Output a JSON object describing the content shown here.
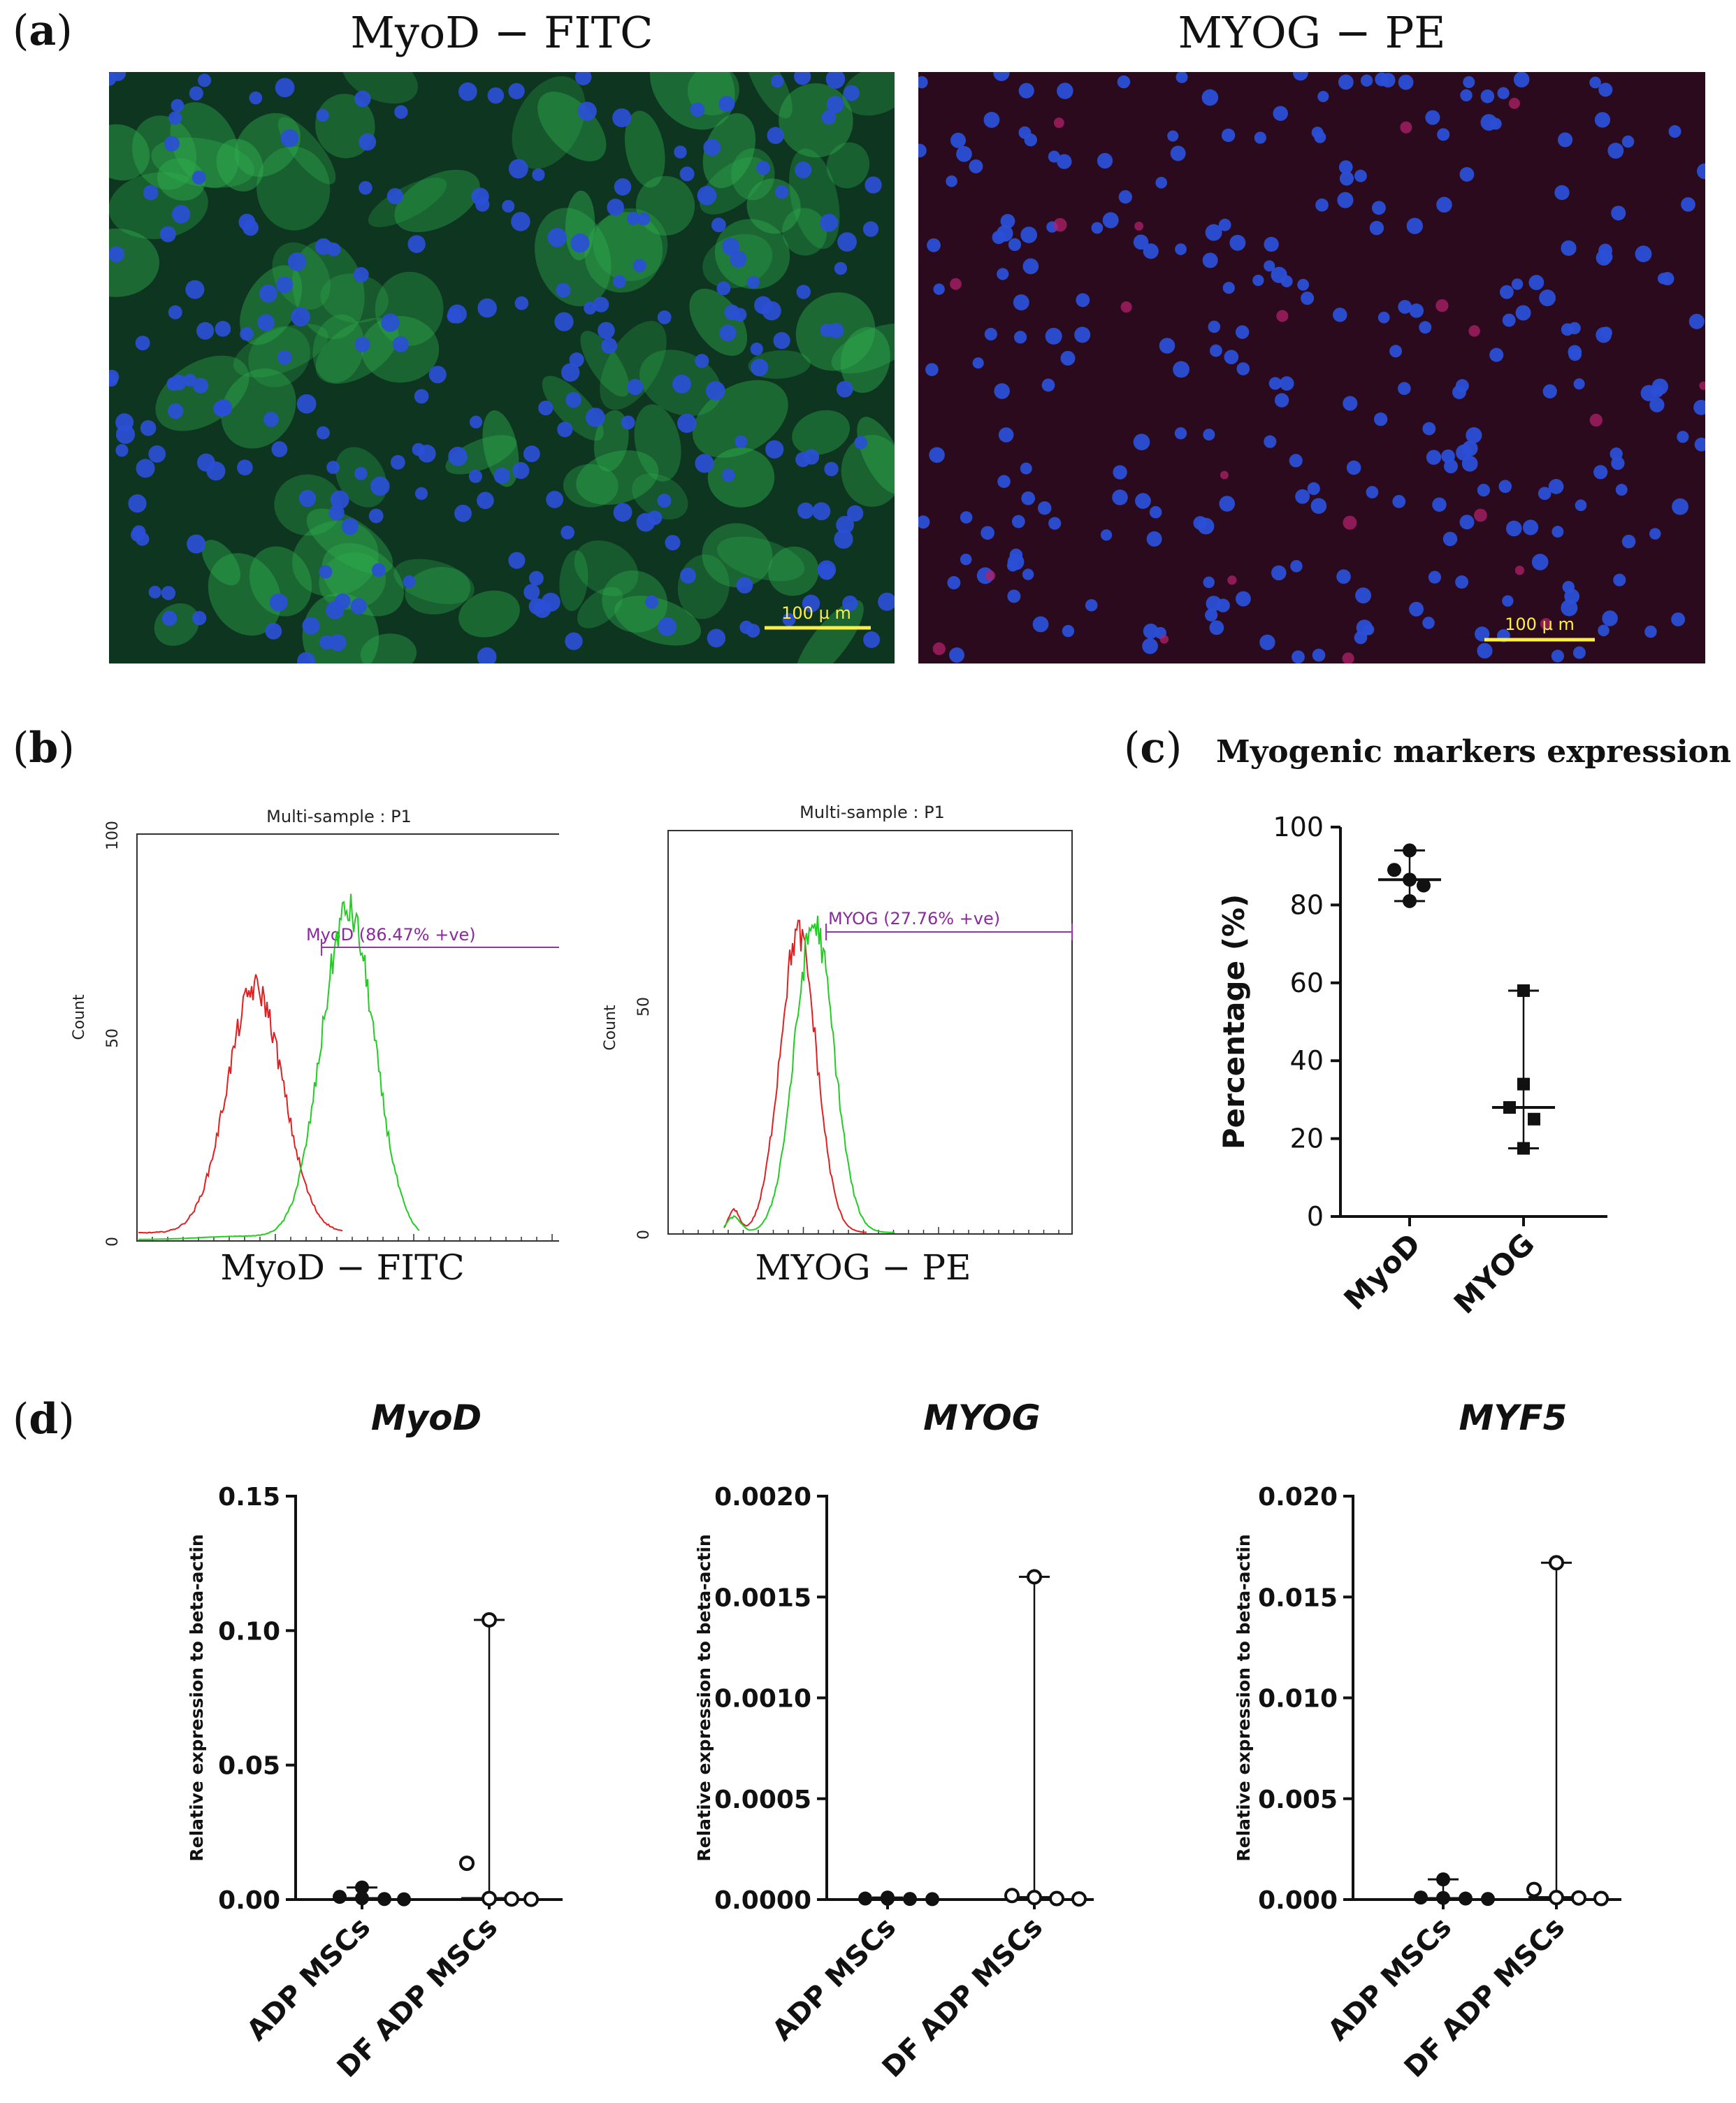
{
  "panel_a": {
    "label_open": "(",
    "label_letter": "a",
    "label_close": ")",
    "left_title": "MyoD − FITC",
    "right_title": "MYOG − PE",
    "left_scale": "100 µ m",
    "right_scale": "100 µ m",
    "colors": {
      "nucleus": "#2a4fd6",
      "fitc": "#2fae4e",
      "pe_bg": "#2a0a1c",
      "scale": "#ffee44"
    }
  },
  "panel_b": {
    "label_open": "(",
    "label_letter": "b",
    "label_close": ")",
    "left": {
      "header": "Multi-sample : P1",
      "ylabel": "Count",
      "xlabel": "MyoD − FITC",
      "gate": "MyoD (86.47% +ve)",
      "yticks": [
        "0",
        "50",
        "100"
      ]
    },
    "right": {
      "header": "Multi-sample : P1",
      "ylabel": "Count",
      "xlabel": "MYOG − PE",
      "gate": "MYOG (27.76% +ve)",
      "yticks": [
        "0",
        "50"
      ]
    },
    "colors": {
      "control": "#e02020",
      "stained": "#22cc22",
      "gate": "#9933aa"
    }
  },
  "panel_c": {
    "label_open": "(",
    "label_letter": "c",
    "label_close": ")",
    "title": "Myogenic markers expression"
  },
  "panel_d": {
    "label_open": "(",
    "label_letter": "d",
    "label_close": ")"
  },
  "chart_data": [
    {
      "type": "scatter",
      "title": "Myogenic markers expression",
      "xlabel": "",
      "ylabel": "Percentage (%)",
      "ylim": [
        0,
        100
      ],
      "yticks": [
        "0",
        "20",
        "40",
        "60",
        "80",
        "100"
      ],
      "categories": [
        "MyoD",
        "MYOG"
      ],
      "series": [
        {
          "name": "MyoD",
          "marker": "circle",
          "values": [
            94,
            89,
            86.5,
            85,
            81
          ],
          "median": 86.5,
          "range": [
            81,
            94
          ]
        },
        {
          "name": "MYOG",
          "marker": "square",
          "values": [
            58,
            34,
            28,
            25,
            17.5
          ],
          "median": 28,
          "range": [
            17.5,
            58
          ]
        }
      ]
    },
    {
      "type": "scatter",
      "title": "MyoD",
      "xlabel": "",
      "ylabel": "Relative expression to beta-actin",
      "ylim": [
        0,
        0.15
      ],
      "yticks": [
        "0.00",
        "0.05",
        "0.10",
        "0.15"
      ],
      "categories": [
        "ADP MSCs",
        "DF ADP MSCs"
      ],
      "series": [
        {
          "name": "ADP MSCs",
          "marker": "filled-circle",
          "values": [
            0.0045,
            0.001,
            0.0005,
            0.0002,
            0.0001
          ],
          "median": 0.0004,
          "range": [
            0,
            0.0045
          ]
        },
        {
          "name": "DF ADP MSCs",
          "marker": "open-circle",
          "values": [
            0.104,
            0.0135,
            0.0004,
            0.0002,
            0.0001
          ],
          "median": 0.0004,
          "range": [
            0,
            0.104
          ]
        }
      ]
    },
    {
      "type": "scatter",
      "title": "MYOG",
      "xlabel": "",
      "ylabel": "Relative expression to beta-actin",
      "ylim": [
        0,
        0.002
      ],
      "yticks": [
        "0.0000",
        "0.0005",
        "0.0010",
        "0.0015",
        "0.0020"
      ],
      "categories": [
        "ADP MSCs",
        "DF ADP MSCs"
      ],
      "series": [
        {
          "name": "ADP MSCs",
          "marker": "filled-circle",
          "values": [
            1e-05,
            5e-06,
            4e-06,
            3e-06,
            2e-06
          ],
          "median": 4e-06,
          "range": [
            0,
            1e-05
          ]
        },
        {
          "name": "DF ADP MSCs",
          "marker": "open-circle",
          "values": [
            0.0016,
            2e-05,
            1e-05,
            5e-06,
            3e-06
          ],
          "median": 1e-05,
          "range": [
            0,
            0.0016
          ]
        }
      ]
    },
    {
      "type": "scatter",
      "title": "MYF5",
      "xlabel": "",
      "ylabel": "Relative expression to beta-actin",
      "ylim": [
        0,
        0.02
      ],
      "yticks": [
        "0.000",
        "0.005",
        "0.010",
        "0.015",
        "0.020"
      ],
      "categories": [
        "ADP MSCs",
        "DF ADP MSCs"
      ],
      "series": [
        {
          "name": "ADP MSCs",
          "marker": "filled-circle",
          "values": [
            0.001,
            0.0001,
            8e-05,
            5e-05,
            3e-05
          ],
          "median": 5e-05,
          "range": [
            0,
            0.001
          ]
        },
        {
          "name": "DF ADP MSCs",
          "marker": "open-circle",
          "values": [
            0.0167,
            0.0005,
            0.0001,
            8e-05,
            5e-05
          ],
          "median": 0.0001,
          "range": [
            0,
            0.0167
          ]
        }
      ]
    }
  ]
}
